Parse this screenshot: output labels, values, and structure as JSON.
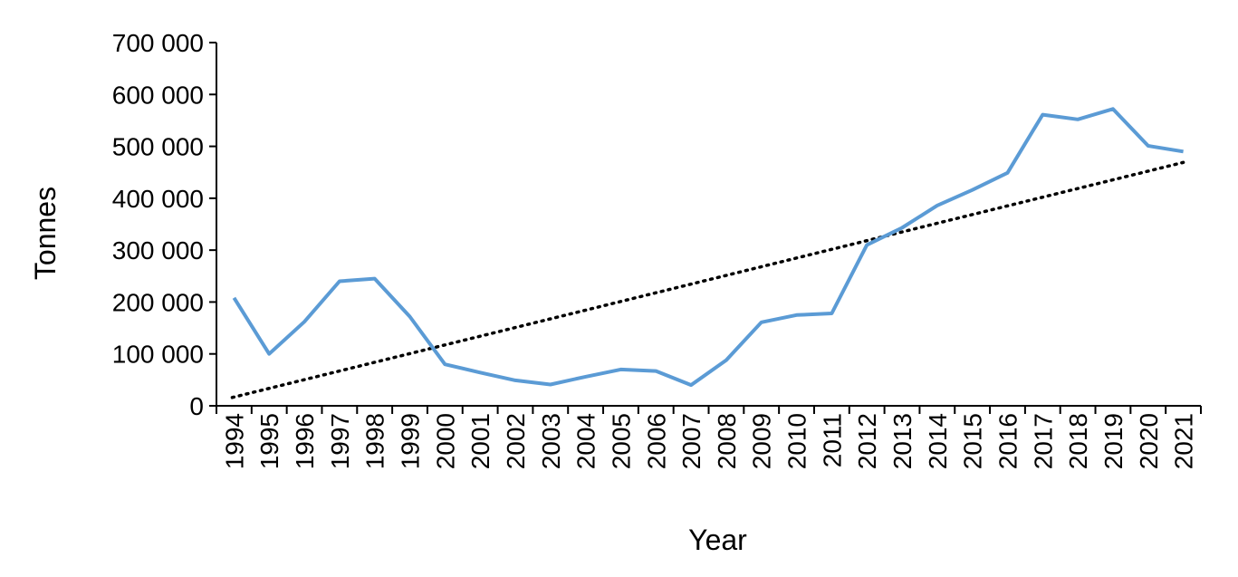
{
  "chart_data": {
    "type": "line",
    "title": "",
    "xlabel": "Year",
    "ylabel": "Tonnes",
    "x": [
      "1994",
      "1995",
      "1996",
      "1997",
      "1998",
      "1999",
      "2000",
      "2001",
      "2002",
      "2003",
      "2004",
      "2005",
      "2006",
      "2007",
      "2008",
      "2009",
      "2010",
      "2011",
      "2012",
      "2013",
      "2014",
      "2015",
      "2016",
      "2017",
      "2018",
      "2019",
      "2020",
      "2021"
    ],
    "yticks": [
      {
        "value": 0,
        "label": "0"
      },
      {
        "value": 100000,
        "label": "100 000"
      },
      {
        "value": 200000,
        "label": "200 000"
      },
      {
        "value": 300000,
        "label": "300 000"
      },
      {
        "value": 400000,
        "label": "400 000"
      },
      {
        "value": 500000,
        "label": "500 000"
      },
      {
        "value": 600000,
        "label": "600 000"
      },
      {
        "value": 700000,
        "label": "700 000"
      }
    ],
    "ylim": [
      0,
      700000
    ],
    "grid": false,
    "legend": "none",
    "series": [
      {
        "color": "#5B9BD5",
        "values": [
          208000,
          100000,
          162000,
          240000,
          245000,
          172000,
          80000,
          64000,
          49000,
          41000,
          56000,
          70000,
          67000,
          40000,
          88000,
          161000,
          175000,
          178000,
          310000,
          343000,
          386000,
          416000,
          449000,
          561000,
          552000,
          572000,
          501000,
          490000
        ]
      }
    ],
    "trendline": {
      "style": "dotted",
      "color": "#000000",
      "start": 16000,
      "end": 469000
    }
  }
}
